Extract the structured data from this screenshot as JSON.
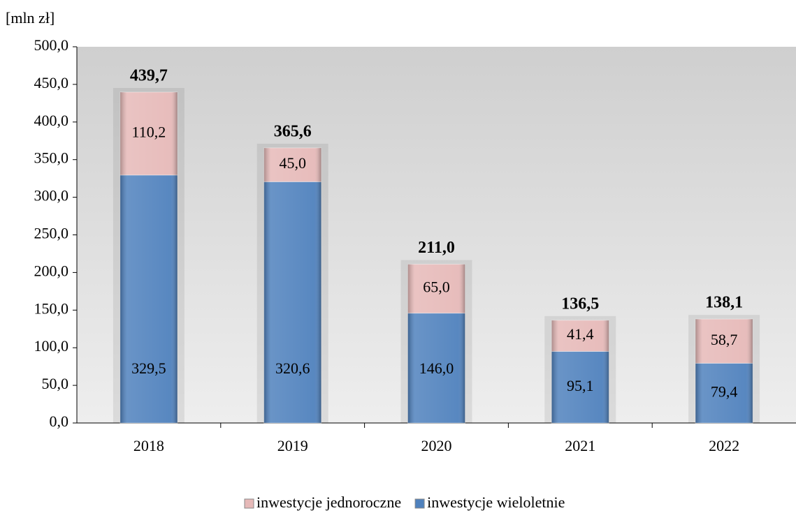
{
  "chart_data": {
    "type": "stacked_bar",
    "y_unit_label": "[mln zł]",
    "categories": [
      "2018",
      "2019",
      "2020",
      "2021",
      "2022"
    ],
    "series": [
      {
        "name": "inwestycje wieloletnie",
        "color": "#4f81bd",
        "values": [
          329.5,
          320.6,
          146.0,
          95.1,
          79.4
        ],
        "value_labels": [
          "329,5",
          "320,6",
          "146,0",
          "95,1",
          "79,4"
        ]
      },
      {
        "name": "inwestycje jednoroczne",
        "color": "#e6b9b8",
        "values": [
          110.2,
          45.0,
          65.0,
          41.4,
          58.7
        ],
        "value_labels": [
          "110,2",
          "45,0",
          "65,0",
          "41,4",
          "58,7"
        ]
      }
    ],
    "totals": [
      439.7,
      365.6,
      211.0,
      136.5,
      138.1
    ],
    "totals_labels": [
      "439,7",
      "365,6",
      "211,0",
      "136,5",
      "138,1"
    ],
    "ylim": [
      0,
      500
    ],
    "yticks": [
      {
        "value": 0,
        "label": "0,0"
      },
      {
        "value": 50,
        "label": "50,0"
      },
      {
        "value": 100,
        "label": "100,0"
      },
      {
        "value": 150,
        "label": "150,0"
      },
      {
        "value": 200,
        "label": "200,0"
      },
      {
        "value": 250,
        "label": "250,0"
      },
      {
        "value": 300,
        "label": "300,0"
      },
      {
        "value": 350,
        "label": "350,0"
      },
      {
        "value": 400,
        "label": "400,0"
      },
      {
        "value": 450,
        "label": "450,0"
      },
      {
        "value": 500,
        "label": "500,0"
      }
    ],
    "grid": false,
    "legend": "bottom"
  }
}
